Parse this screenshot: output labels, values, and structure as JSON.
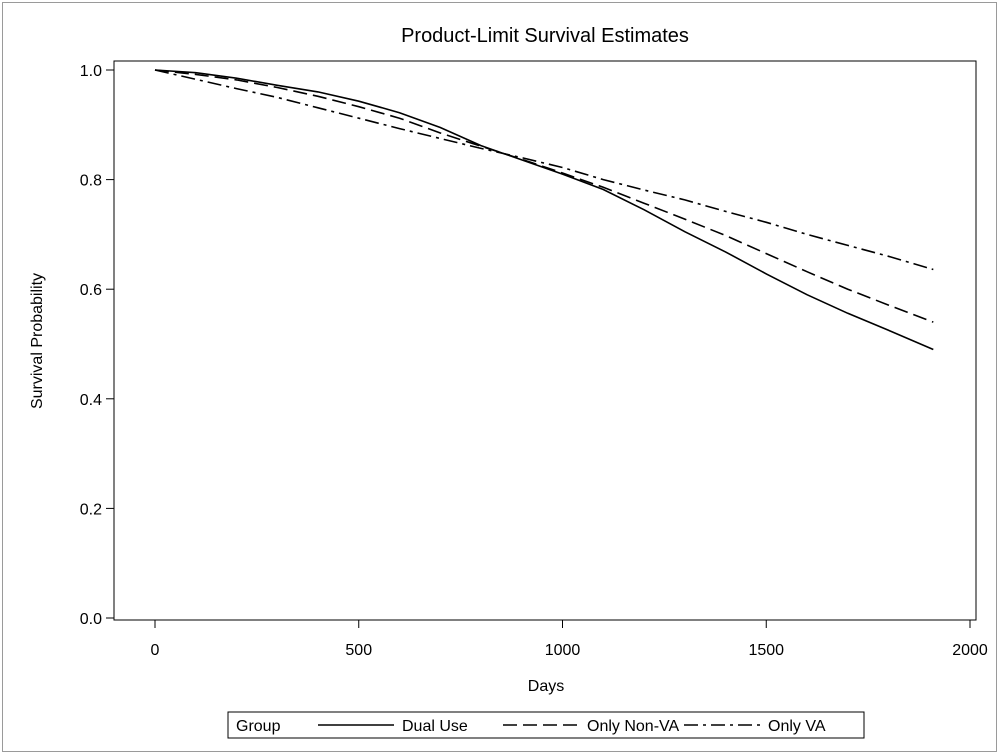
{
  "chart_data": {
    "type": "line",
    "title": "Product-Limit Survival Estimates",
    "xlabel": "Days",
    "ylabel": "Survival Probability",
    "xlim": [
      0,
      2000
    ],
    "ylim": [
      0,
      1.0
    ],
    "xticks": [
      "0",
      "500",
      "1000",
      "1500",
      "2000"
    ],
    "yticks": [
      "0.0",
      "0.2",
      "0.4",
      "0.6",
      "0.8",
      "1.0"
    ],
    "xtick_values": [
      0,
      500,
      1000,
      1500,
      2000
    ],
    "ytick_values": [
      0,
      0.2,
      0.4,
      0.6,
      0.8,
      1.0
    ],
    "grid": false,
    "legend_position": "bottom",
    "legend_title": "Group",
    "series": [
      {
        "name": "Dual Use",
        "dash": "solid",
        "x": [
          0,
          100,
          200,
          300,
          400,
          500,
          600,
          700,
          800,
          900,
          1000,
          1100,
          1200,
          1300,
          1400,
          1500,
          1600,
          1700,
          1800,
          1910
        ],
        "y": [
          1.0,
          0.995,
          0.985,
          0.972,
          0.96,
          0.943,
          0.922,
          0.895,
          0.862,
          0.836,
          0.81,
          0.782,
          0.745,
          0.705,
          0.668,
          0.628,
          0.59,
          0.556,
          0.525,
          0.49
        ]
      },
      {
        "name": "Only Non-VA",
        "dash": "dashed",
        "x": [
          0,
          100,
          200,
          300,
          400,
          500,
          600,
          700,
          800,
          900,
          1000,
          1100,
          1200,
          1300,
          1400,
          1500,
          1600,
          1700,
          1800,
          1910
        ],
        "y": [
          1.0,
          0.992,
          0.982,
          0.968,
          0.952,
          0.933,
          0.912,
          0.885,
          0.861,
          0.837,
          0.812,
          0.786,
          0.757,
          0.728,
          0.698,
          0.665,
          0.632,
          0.6,
          0.571,
          0.54
        ]
      },
      {
        "name": "Only VA",
        "dash": "dashdot",
        "x": [
          0,
          100,
          200,
          300,
          400,
          500,
          600,
          700,
          800,
          900,
          1000,
          1100,
          1200,
          1300,
          1400,
          1500,
          1600,
          1700,
          1800,
          1910
        ],
        "y": [
          1.0,
          0.983,
          0.966,
          0.95,
          0.931,
          0.912,
          0.893,
          0.875,
          0.857,
          0.84,
          0.822,
          0.8,
          0.781,
          0.763,
          0.742,
          0.722,
          0.7,
          0.68,
          0.66,
          0.636
        ]
      }
    ]
  }
}
